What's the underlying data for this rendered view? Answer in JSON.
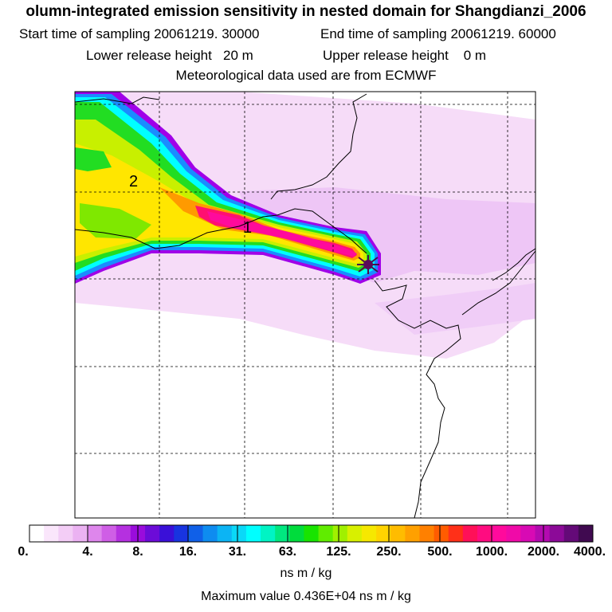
{
  "header": {
    "title": "olumn-integrated emission sensitivity in nested domain for Shangdianzi_2006",
    "start_sampling": "Start time of sampling 20061219. 30000",
    "end_sampling": "End time of sampling 20061219. 60000",
    "lower_release": "Lower release height   20 m",
    "upper_release": "Upper release height    0 m",
    "met_data": "Meteorological data used are from ECMWF"
  },
  "map": {
    "contour_labels": [
      "2",
      "1"
    ],
    "colors": {
      "very_low": "#f6dcf8",
      "low": "#eec6f6",
      "green": "#22dd22",
      "yellow_green": "#c8f000",
      "yellow": "#ffe600",
      "cyan": "#00ffff",
      "blue": "#1a8cff",
      "purple": "#a000e8",
      "red_magenta": "#ff1070",
      "magenta": "#ff0a9c",
      "receptor": "#4a0b4a"
    }
  },
  "colorbar": {
    "tick_labels": [
      "0.",
      "4.",
      "8.",
      "16.",
      "31.",
      "63.",
      "125.",
      "250.",
      "500.",
      "1000.",
      "2000.",
      "4000."
    ],
    "units": "ns m / kg",
    "colors": [
      "#ffffff",
      "#fae6fb",
      "#f3cdf6",
      "#ebb2f2",
      "#de86ec",
      "#cf5ee6",
      "#b530e0",
      "#9a0cdc",
      "#6c0cd8",
      "#3a10d8",
      "#1834e0",
      "#1060e8",
      "#0e8cf0",
      "#0cb4f4",
      "#0ad8f8",
      "#00ffff",
      "#00f4c4",
      "#00e880",
      "#00dc3c",
      "#18e400",
      "#60ec00",
      "#a0f000",
      "#d8f000",
      "#f6e800",
      "#ffd400",
      "#ffbc00",
      "#ffa000",
      "#ff8000",
      "#ff5c00",
      "#ff3018",
      "#ff1058",
      "#ff0c80",
      "#ff0a9c",
      "#f00aa8",
      "#d80ab4",
      "#b40ab0",
      "#8c0a98",
      "#640a78",
      "#400a50"
    ],
    "max_value": "Maximum value  0.436E+04 ns m / kg"
  }
}
